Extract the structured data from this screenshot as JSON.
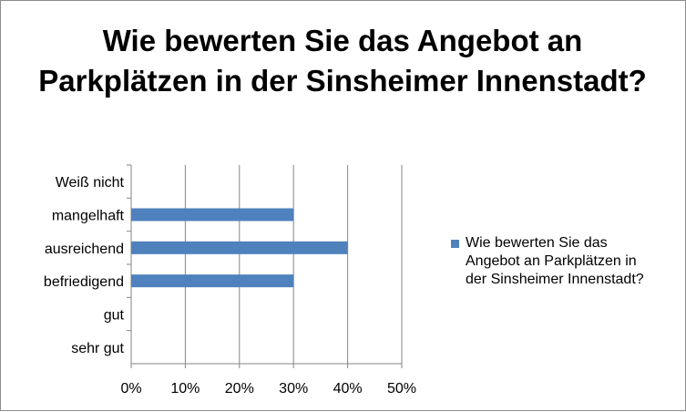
{
  "chart_data": {
    "type": "bar",
    "orientation": "horizontal",
    "title": "Wie bewerten Sie das Angebot an Parkplätzen in der Sinsheimer Innenstadt?",
    "categories": [
      "sehr gut",
      "gut",
      "befriedigend",
      "ausreichend",
      "mangelhaft",
      "Weiß nicht"
    ],
    "series": [
      {
        "name": "Wie bewerten Sie das Angebot an Parkplätzen in der Sinsheimer Innenstadt?",
        "values": [
          0,
          0,
          0.3,
          0.4,
          0.3,
          0
        ],
        "color": "#4f81bd"
      }
    ],
    "xlim": [
      0,
      0.5
    ],
    "xticks": [
      "0%",
      "10%",
      "20%",
      "30%",
      "40%",
      "50%"
    ],
    "grid": "vertical",
    "legend": "right"
  }
}
